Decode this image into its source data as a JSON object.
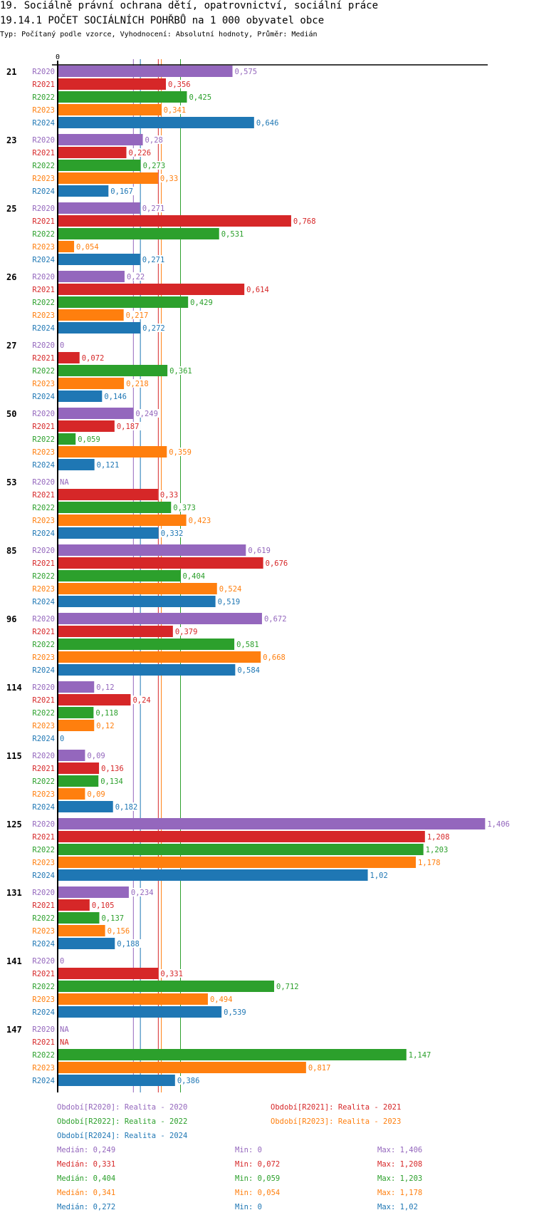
{
  "header": {
    "title": "19. Sociálně právní ochrana dětí, opatrovnictví, sociální práce",
    "subtitle": "19.14.1 POČET SOCIÁLNÍCH POHŘBŮ na 1 000 obyvatel obce",
    "info": "Typ: Počítaný podle vzorce, Vyhodnocení: Absolutní hodnoty, Průměr: Medián"
  },
  "chart_data": {
    "type": "bar",
    "orientation": "horizontal",
    "title": "19.14.1 POČET SOCIÁLNÍCH POHŘBŮ na 1 000 obyvatel obce",
    "xlabel": "",
    "ylabel": "",
    "x_tick_labels": [
      "0"
    ],
    "xlim": [
      0,
      1.42
    ],
    "grid": false,
    "categories": [
      "21",
      "23",
      "25",
      "26",
      "27",
      "50",
      "53",
      "85",
      "96",
      "114",
      "115",
      "125",
      "131",
      "141",
      "147"
    ],
    "series": [
      {
        "name": "R2020",
        "color": "#9467bd",
        "values": [
          0.575,
          0.28,
          0.271,
          0.22,
          0,
          0.249,
          null,
          0.619,
          0.672,
          0.12,
          0.09,
          1.406,
          0.234,
          0,
          null
        ],
        "labels": [
          "0,575",
          "0,28",
          "0,271",
          "0,22",
          "0",
          "0,249",
          "NA",
          "0,619",
          "0,672",
          "0,12",
          "0,09",
          "1,406",
          "0,234",
          "0",
          "NA"
        ]
      },
      {
        "name": "R2021",
        "color": "#d62728",
        "values": [
          0.356,
          0.226,
          0.768,
          0.614,
          0.072,
          0.187,
          0.33,
          0.676,
          0.379,
          0.24,
          0.136,
          1.208,
          0.105,
          0.331,
          null
        ],
        "labels": [
          "0,356",
          "0,226",
          "0,768",
          "0,614",
          "0,072",
          "0,187",
          "0,33",
          "0,676",
          "0,379",
          "0,24",
          "0,136",
          "1,208",
          "0,105",
          "0,331",
          "NA"
        ]
      },
      {
        "name": "R2022",
        "color": "#2ca02c",
        "values": [
          0.425,
          0.273,
          0.531,
          0.429,
          0.361,
          0.059,
          0.373,
          0.404,
          0.581,
          0.118,
          0.134,
          1.203,
          0.137,
          0.712,
          1.147
        ],
        "labels": [
          "0,425",
          "0,273",
          "0,531",
          "0,429",
          "0,361",
          "0,059",
          "0,373",
          "0,404",
          "0,581",
          "0,118",
          "0,134",
          "1,203",
          "0,137",
          "0,712",
          "1,147"
        ]
      },
      {
        "name": "R2023",
        "color": "#ff7f0e",
        "values": [
          0.341,
          0.33,
          0.054,
          0.217,
          0.218,
          0.359,
          0.423,
          0.524,
          0.668,
          0.12,
          0.09,
          1.178,
          0.156,
          0.494,
          0.817
        ],
        "labels": [
          "0,341",
          "0,33",
          "0,054",
          "0,217",
          "0,218",
          "0,359",
          "0,423",
          "0,524",
          "0,668",
          "0,12",
          "0,09",
          "1,178",
          "0,156",
          "0,494",
          "0,817"
        ]
      },
      {
        "name": "R2024",
        "color": "#1f77b4",
        "values": [
          0.646,
          0.167,
          0.271,
          0.272,
          0.146,
          0.121,
          0.332,
          0.519,
          0.584,
          0,
          0.182,
          1.02,
          0.188,
          0.539,
          0.386
        ],
        "labels": [
          "0,646",
          "0,167",
          "0,271",
          "0,272",
          "0,146",
          "0,121",
          "0,332",
          "0,519",
          "0,584",
          "0",
          "0,182",
          "1,02",
          "0,188",
          "0,539",
          "0,386"
        ]
      }
    ],
    "median_lines": [
      {
        "series": "R2020",
        "value": 0.249
      },
      {
        "series": "R2021",
        "value": 0.331
      },
      {
        "series": "R2022",
        "value": 0.404
      },
      {
        "series": "R2023",
        "value": 0.341
      },
      {
        "series": "R2024",
        "value": 0.272
      }
    ],
    "legend_position": "bottom"
  },
  "legend": {
    "periods": [
      {
        "text": "Období[R2020]: Realita - 2020",
        "color": "#9467bd"
      },
      {
        "text": "Období[R2021]: Realita - 2021",
        "color": "#d62728"
      },
      {
        "text": "Období[R2022]: Realita - 2022",
        "color": "#2ca02c"
      },
      {
        "text": "Období[R2023]: Realita - 2023",
        "color": "#ff7f0e"
      },
      {
        "text": "Období[R2024]: Realita - 2024",
        "color": "#1f77b4"
      }
    ],
    "stats": [
      {
        "median": "Medián: 0,249",
        "min": "Min: 0",
        "max": "Max: 1,406",
        "color": "#9467bd"
      },
      {
        "median": "Medián: 0,331",
        "min": "Min: 0,072",
        "max": "Max: 1,208",
        "color": "#d62728"
      },
      {
        "median": "Medián: 0,404",
        "min": "Min: 0,059",
        "max": "Max: 1,203",
        "color": "#2ca02c"
      },
      {
        "median": "Medián: 0,341",
        "min": "Min: 0,054",
        "max": "Max: 1,178",
        "color": "#ff7f0e"
      },
      {
        "median": "Medián: 0,272",
        "min": "Min: 0",
        "max": "Max: 1,02",
        "color": "#1f77b4"
      }
    ]
  }
}
